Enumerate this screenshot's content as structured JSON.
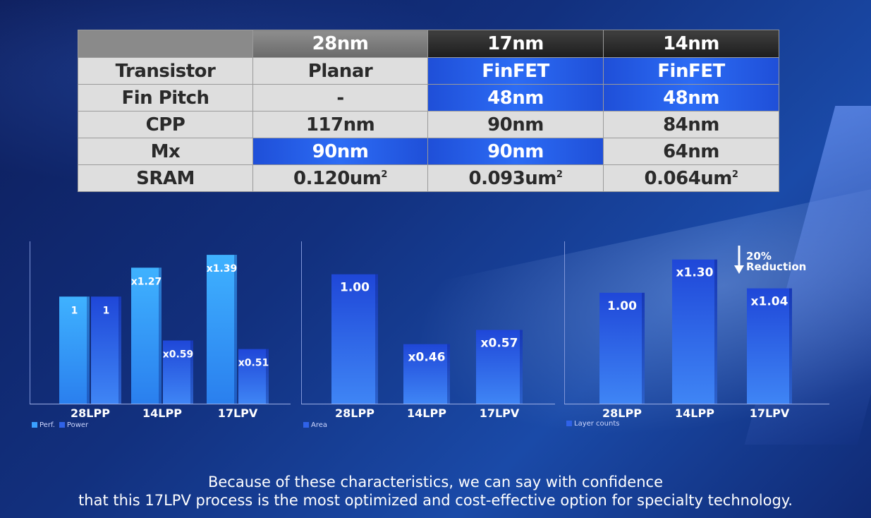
{
  "table": {
    "columns": [
      "",
      "28nm",
      "17nm",
      "14nm"
    ],
    "rows": [
      {
        "label": "Transistor",
        "cells": [
          "Planar",
          "FinFET",
          "FinFET"
        ]
      },
      {
        "label": "Fin Pitch",
        "cells": [
          "-",
          "48nm",
          "48nm"
        ]
      },
      {
        "label": "CPP",
        "cells": [
          "117nm",
          "90nm",
          "84nm"
        ]
      },
      {
        "label": "Mx",
        "cells": [
          "90nm",
          "90nm",
          "64nm"
        ]
      },
      {
        "label": "SRAM",
        "cells": [
          "0.120um",
          "0.093um",
          "0.064um"
        ],
        "unit_sup": "2"
      }
    ]
  },
  "chart_data": [
    {
      "type": "bar",
      "categories": [
        "28LPP",
        "14LPP",
        "17LPV"
      ],
      "series": [
        {
          "name": "Perf.",
          "values": [
            1,
            1.27,
            1.39
          ],
          "labels": [
            "1",
            "x1.27",
            "x1.39"
          ],
          "color": "#3aa0ff"
        },
        {
          "name": "Power",
          "values": [
            1,
            0.59,
            0.51
          ],
          "labels": [
            "1",
            "x0.59",
            "x0.51"
          ],
          "color": "#2f62e8"
        }
      ],
      "ylim": [
        0,
        1.45
      ],
      "legend": "bottom-left"
    },
    {
      "type": "bar",
      "categories": [
        "28LPP",
        "14LPP",
        "17LPV"
      ],
      "series": [
        {
          "name": "Area",
          "values": [
            1.0,
            0.46,
            0.57
          ],
          "labels": [
            "1.00",
            "x0.46",
            "x0.57"
          ],
          "color": "#2f62e8"
        }
      ],
      "ylim": [
        0,
        1.2
      ],
      "legend": "bottom-left"
    },
    {
      "type": "bar",
      "categories": [
        "28LPP",
        "14LPP",
        "17LPV"
      ],
      "series": [
        {
          "name": "Layer counts",
          "values": [
            1.0,
            1.3,
            1.04
          ],
          "labels": [
            "1.00",
            "x1.30",
            "x1.04"
          ],
          "color": "#2f62e8"
        }
      ],
      "ylim": [
        0,
        1.4
      ],
      "legend": "bottom-left",
      "annotation": {
        "percent": "20%",
        "text": "Reduction"
      }
    }
  ],
  "caption": {
    "line1": "Because of these characteristics, we can say with confidence",
    "line2": "that this 17LPV process is the most optimized and cost-effective option for specialty technology."
  }
}
